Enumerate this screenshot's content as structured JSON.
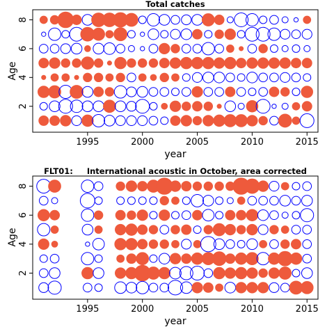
{
  "colors": {
    "positive": "#EE5A3C",
    "negative": "#0000FF",
    "axis": "#000000"
  },
  "chart_data": [
    {
      "type": "bubble",
      "title": "Total catches",
      "xlabel": "year",
      "ylabel": "Age",
      "xlim": [
        1990,
        2016
      ],
      "ylim": [
        0.2,
        8.7
      ],
      "xticks": [
        1995,
        2000,
        2005,
        2010,
        2015
      ],
      "yticks": [
        2,
        4,
        6,
        8
      ],
      "years": [
        1991,
        1992,
        1993,
        1994,
        1995,
        1996,
        1997,
        1998,
        1999,
        2000,
        2001,
        2002,
        2003,
        2004,
        2005,
        2006,
        2007,
        2008,
        2009,
        2010,
        2011,
        2012,
        2013,
        2014,
        2015
      ],
      "ages": [
        1,
        2,
        3,
        4,
        5,
        6,
        7,
        8
      ],
      "note": "residuals[row = age 8 first ... age 1 last][column = year]; positive = filled red, negative = open blue",
      "residuals": [
        [
          0.3,
          0.4,
          1.3,
          0.5,
          -0.6,
          1.0,
          1.0,
          1.1,
          0.9,
          -0.3,
          -0.8,
          -0.6,
          -0.4,
          -0.5,
          -0.6,
          0.8,
          0.5,
          -0.2,
          -1.0,
          -0.8,
          -0.3,
          -0.4,
          -0.2,
          -0.1,
          0.3
        ],
        [
          -0.1,
          -0.8,
          -0.3,
          -1.0,
          1.0,
          0.8,
          0.3,
          0.9,
          -0.3,
          -0.1,
          -0.6,
          -0.3,
          -0.5,
          -0.6,
          0.5,
          -0.3,
          0.4,
          0.6,
          -0.3,
          -1.0,
          -1.0,
          -0.8,
          -0.5,
          -0.4,
          -0.5
        ],
        [
          -0.4,
          -0.4,
          -0.5,
          -0.6,
          0.2,
          -0.6,
          -0.7,
          -0.4,
          -0.2,
          -0.1,
          -0.4,
          0.6,
          0.4,
          -0.4,
          -0.4,
          -0.8,
          -0.4,
          0.3,
          0.1,
          -0.4,
          0.4,
          -0.3,
          -0.2,
          -0.3,
          -0.2
        ],
        [
          0.5,
          0.6,
          0.4,
          0.4,
          0.8,
          0.4,
          0.1,
          0.7,
          0.4,
          0.4,
          0.4,
          0.5,
          0.6,
          0.7,
          0.7,
          0.7,
          0.6,
          0.7,
          0.5,
          0.6,
          0.6,
          0.6,
          0.6,
          0.5,
          0.5
        ],
        [
          0.1,
          0.3,
          0.3,
          0.1,
          0.4,
          0.4,
          0.3,
          0.4,
          -0.4,
          0.3,
          0.2,
          0.4,
          0.3,
          -0.3,
          -0.5,
          -0.6,
          -0.6,
          -0.4,
          -0.3,
          -0.6,
          -0.4,
          -0.4,
          -0.5,
          -0.4,
          -0.3
        ],
        [
          0.7,
          0.8,
          -0.9,
          0.9,
          -0.6,
          0.5,
          0.4,
          -0.8,
          -0.5,
          -0.6,
          -0.4,
          -0.4,
          -0.3,
          -0.4,
          0.6,
          -0.4,
          -0.4,
          0.5,
          -0.4,
          -0.3,
          -0.4,
          0.5,
          0.4,
          -0.3,
          0.7
        ],
        [
          -0.3,
          -0.6,
          -1.0,
          -0.8,
          -0.6,
          -0.6,
          0.8,
          -0.6,
          -0.5,
          -1.0,
          -0.3,
          0.2,
          0.6,
          0.4,
          0.5,
          0.4,
          0.1,
          -0.6,
          -0.2,
          0.7,
          -1.0,
          -0.1,
          -0.2,
          0.3,
          0.5
        ],
        [
          0.5,
          0.5,
          0.6,
          -0.5,
          0.7,
          -0.8,
          -0.6,
          -0.5,
          -0.5,
          -0.5,
          -0.4,
          -0.3,
          0.5,
          0.6,
          0.4,
          0.6,
          0.7,
          0.8,
          0.8,
          0.6,
          0.4,
          -0.4,
          0.9,
          0.3,
          -1.0
        ]
      ]
    },
    {
      "type": "bubble",
      "title": "FLT01:     International acoustic in October, area corrected",
      "xlabel": "year",
      "ylabel": "Age",
      "xlim": [
        1990,
        2016
      ],
      "ylim": [
        0.2,
        8.7
      ],
      "xticks": [
        1995,
        2000,
        2005,
        2010,
        2015
      ],
      "yticks": [
        2,
        4,
        6,
        8
      ],
      "years": [
        1991,
        1992,
        1993,
        1994,
        1995,
        1996,
        1997,
        1998,
        1999,
        2000,
        2001,
        2002,
        2003,
        2004,
        2005,
        2006,
        2007,
        2008,
        2009,
        2010,
        2011,
        2012,
        2013,
        2014,
        2015
      ],
      "ages": [
        1,
        2,
        3,
        4,
        5,
        6,
        7,
        8
      ],
      "note": "residuals[row = age 8 first ... age 1 last][column = year]; null = no observation",
      "residuals": [
        [
          -1.0,
          0.8,
          null,
          null,
          -0.8,
          -0.4,
          null,
          0.4,
          0.6,
          0.5,
          0.8,
          1.4,
          0.6,
          0.5,
          0.4,
          0.4,
          0.4,
          0.4,
          1.4,
          1.1,
          0.6,
          -0.5,
          0.3,
          -0.3,
          -0.4
        ],
        [
          -0.4,
          -0.2,
          null,
          null,
          -1.1,
          -0.3,
          null,
          -0.3,
          -0.3,
          -0.3,
          -0.3,
          0.4,
          0.3,
          -0.3,
          -0.8,
          -0.6,
          -0.3,
          -0.2,
          0.3,
          -0.4,
          -0.4,
          -0.4,
          -0.6,
          -0.4,
          -0.6
        ],
        [
          0.7,
          0.5,
          null,
          null,
          -0.8,
          0.4,
          null,
          0.5,
          0.4,
          0.6,
          -0.3,
          0.6,
          -0.3,
          -0.4,
          0.5,
          -0.7,
          -0.3,
          0.5,
          0.5,
          0.7,
          -0.6,
          -0.4,
          -0.2,
          -0.3,
          -0.9
        ],
        [
          -0.8,
          0.3,
          null,
          null,
          -0.6,
          0.3,
          null,
          0.6,
          0.7,
          0.5,
          0.4,
          -0.4,
          0.4,
          0.5,
          -0.3,
          0.4,
          0.8,
          0.6,
          0.4,
          0.6,
          -0.5,
          0.4,
          0.3,
          -0.4,
          -0.4
        ],
        [
          0.6,
          0.2,
          null,
          null,
          -0.1,
          -0.7,
          null,
          0.7,
          0.7,
          0.5,
          0.4,
          0.4,
          0.3,
          -0.5,
          0.3,
          -1.2,
          -0.6,
          -0.4,
          -0.3,
          -0.6,
          0.3,
          -0.4,
          0.4,
          0.5,
          -0.4
        ],
        [
          -0.3,
          -0.4,
          null,
          null,
          -0.8,
          -0.3,
          null,
          0.3,
          0.5,
          0.8,
          -0.3,
          -0.6,
          0.6,
          0.5,
          0.7,
          0.8,
          1.0,
          0.5,
          0.7,
          0.8,
          -0.8,
          0.7,
          1.1,
          0.7,
          -0.4
        ],
        [
          -0.4,
          -0.6,
          null,
          null,
          0.7,
          -0.6,
          null,
          0.6,
          0.7,
          1.3,
          0.8,
          0.7,
          -0.7,
          -0.9,
          -1.0,
          -0.4,
          0.7,
          0.6,
          0.7,
          0.6,
          0.4,
          0.6,
          0.8,
          -0.3,
          -0.6
        ],
        [
          -0.5,
          -0.9,
          null,
          null,
          -0.4,
          -0.3,
          null,
          -0.7,
          -0.6,
          -0.8,
          -0.4,
          -0.4,
          -1.1,
          -0.7,
          0.6,
          0.5,
          0.3,
          -0.6,
          0.6,
          0.6,
          0.6,
          -0.5,
          -0.4,
          0.9,
          0.8
        ]
      ]
    }
  ]
}
